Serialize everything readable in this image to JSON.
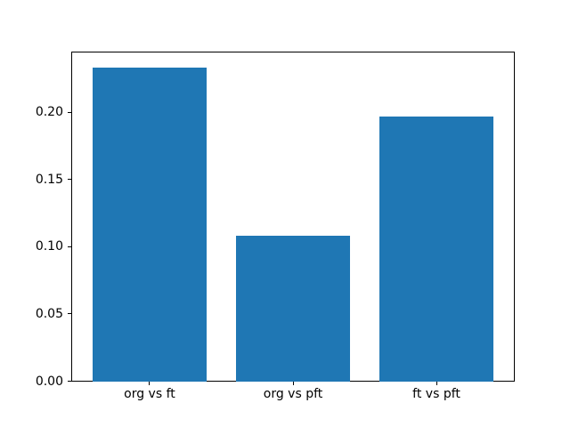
{
  "figure": {
    "background": "#ffffff"
  },
  "chart_data": {
    "type": "bar",
    "categories": [
      "org vs ft",
      "org vs pft",
      "ft vs pft"
    ],
    "values": [
      0.233,
      0.108,
      0.197
    ],
    "title": "",
    "xlabel": "",
    "ylabel": "",
    "ylim": [
      0,
      0.2446
    ],
    "xlim": [
      -0.54,
      2.54
    ],
    "yticks": [
      "0.00",
      "0.05",
      "0.10",
      "0.15",
      "0.20"
    ],
    "bar_width": 0.8,
    "bar_color": "#1f77b4",
    "axis_color": "#000000",
    "grid": false,
    "legend": "none"
  }
}
